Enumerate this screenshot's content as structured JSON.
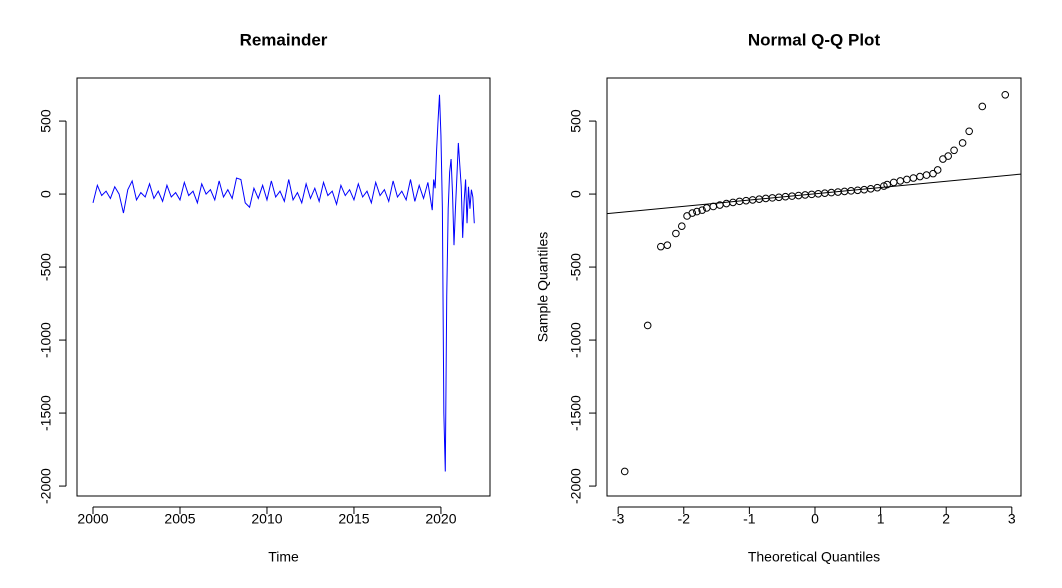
{
  "chart_data": [
    {
      "type": "line",
      "title": "Remainder",
      "xlabel": "Time",
      "color": "#0000ff",
      "xlim": [
        1999.08,
        2022.82
      ],
      "ylim": [
        -2068,
        795
      ],
      "xticks": [
        2000,
        2005,
        2010,
        2015,
        2020
      ],
      "yticks": [
        -2000,
        -1500,
        -1000,
        -500,
        0,
        500
      ],
      "x": [
        2000.0,
        2000.25,
        2000.5,
        2000.75,
        2001.0,
        2001.25,
        2001.5,
        2001.75,
        2002.0,
        2002.25,
        2002.5,
        2002.75,
        2003.0,
        2003.25,
        2003.5,
        2003.75,
        2004.0,
        2004.25,
        2004.5,
        2004.75,
        2005.0,
        2005.25,
        2005.5,
        2005.75,
        2006.0,
        2006.25,
        2006.5,
        2006.75,
        2007.0,
        2007.25,
        2007.5,
        2007.75,
        2008.0,
        2008.25,
        2008.5,
        2008.75,
        2009.0,
        2009.25,
        2009.5,
        2009.75,
        2010.0,
        2010.25,
        2010.5,
        2010.75,
        2011.0,
        2011.25,
        2011.5,
        2011.75,
        2012.0,
        2012.25,
        2012.5,
        2012.75,
        2013.0,
        2013.25,
        2013.5,
        2013.75,
        2014.0,
        2014.25,
        2014.5,
        2014.75,
        2015.0,
        2015.25,
        2015.5,
        2015.75,
        2016.0,
        2016.25,
        2016.5,
        2016.75,
        2017.0,
        2017.25,
        2017.5,
        2017.75,
        2018.0,
        2018.25,
        2018.5,
        2018.75,
        2019.0,
        2019.25,
        2019.5,
        2019.583,
        2019.667,
        2019.75,
        2019.833,
        2019.917,
        2020.0,
        2020.083,
        2020.167,
        2020.25,
        2020.333,
        2020.417,
        2020.5,
        2020.583,
        2020.667,
        2020.75,
        2020.833,
        2020.917,
        2021.0,
        2021.083,
        2021.167,
        2021.25,
        2021.333,
        2021.417,
        2021.5,
        2021.583,
        2021.667,
        2021.75,
        2021.833,
        2021.917
      ],
      "values": [
        -60,
        60,
        -10,
        20,
        -30,
        50,
        0,
        -130,
        30,
        90,
        -40,
        10,
        -20,
        70,
        -30,
        20,
        -50,
        60,
        -20,
        10,
        -40,
        80,
        -10,
        20,
        -60,
        70,
        0,
        30,
        -40,
        90,
        -20,
        30,
        -30,
        110,
        100,
        -60,
        -90,
        40,
        -30,
        60,
        -40,
        90,
        -20,
        20,
        -50,
        100,
        -40,
        10,
        -60,
        70,
        -30,
        40,
        -50,
        80,
        -10,
        20,
        -70,
        60,
        -10,
        30,
        -40,
        70,
        -20,
        20,
        -60,
        80,
        -10,
        30,
        -50,
        90,
        -20,
        20,
        -40,
        100,
        -50,
        60,
        -30,
        80,
        -110,
        100,
        40,
        300,
        500,
        680,
        400,
        -100,
        -1500,
        -1900,
        -700,
        -100,
        150,
        240,
        0,
        -350,
        -100,
        120,
        350,
        200,
        50,
        -300,
        -50,
        100,
        -200,
        50,
        -100,
        30,
        -20,
        -200
      ]
    },
    {
      "type": "scatter",
      "title": "Normal Q-Q Plot",
      "xlabel": "Theoretical Quantiles",
      "ylabel": "Sample Quantiles",
      "xlim": [
        -3.17,
        3.14
      ],
      "ylim": [
        -2068,
        795
      ],
      "xticks": [
        -3,
        -2,
        -1,
        0,
        1,
        2,
        3
      ],
      "yticks": [
        -2000,
        -1500,
        -1000,
        -500,
        0,
        500
      ],
      "reference_line": {
        "intercept": 2,
        "slope": 43
      },
      "x": [
        -2.9,
        -2.55,
        -2.35,
        -2.25,
        -2.12,
        -2.03,
        -1.95,
        -1.87,
        -1.8,
        -1.72,
        -1.65,
        -1.55,
        -1.45,
        -1.35,
        -1.25,
        -1.15,
        -1.05,
        -0.95,
        -0.85,
        -0.75,
        -0.65,
        -0.55,
        -0.45,
        -0.35,
        -0.25,
        -0.15,
        -0.05,
        0.05,
        0.15,
        0.25,
        0.35,
        0.45,
        0.55,
        0.65,
        0.75,
        0.85,
        0.95,
        1.05,
        1.1,
        1.2,
        1.3,
        1.4,
        1.5,
        1.6,
        1.7,
        1.8,
        1.87,
        1.95,
        2.03,
        2.12,
        2.25,
        2.35,
        2.55,
        2.9
      ],
      "values": [
        -1900,
        -900,
        -360,
        -350,
        -270,
        -220,
        -150,
        -130,
        -120,
        -110,
        -95,
        -85,
        -75,
        -65,
        -57,
        -50,
        -45,
        -40,
        -35,
        -30,
        -26,
        -22,
        -18,
        -14,
        -10,
        -6,
        -2,
        2,
        6,
        10,
        14,
        18,
        22,
        26,
        30,
        36,
        44,
        55,
        65,
        80,
        90,
        100,
        110,
        120,
        130,
        140,
        165,
        240,
        260,
        300,
        350,
        430,
        600,
        680
      ]
    }
  ]
}
